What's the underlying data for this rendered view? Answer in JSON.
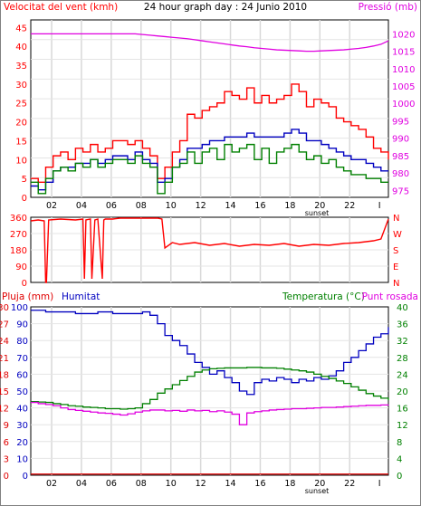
{
  "chart_data": [
    {
      "type": "line",
      "title": "24 hour graph day : 24 Junio 2010",
      "left_axis_label": "Velocitat del vent (kmh)",
      "right_axis_label": "Pressió (mb)",
      "x_ticks": [
        "02",
        "04",
        "06",
        "08",
        "10",
        "12",
        "14",
        "16",
        "18",
        "20",
        "22",
        "I"
      ],
      "x_annotation": "sunset",
      "y_left_ticks": [
        "0",
        "5",
        "10",
        "15",
        "20",
        "25",
        "30",
        "35",
        "40",
        "45"
      ],
      "y_left_range": [
        0,
        47
      ],
      "y_right_ticks": [
        "975",
        "980",
        "985",
        "990",
        "995",
        "1000",
        "1005",
        "1010",
        "1015",
        "1020"
      ],
      "y_right_range": [
        973,
        1024
      ],
      "colors": {
        "gust": "#ff0000",
        "avg": "#0000c0",
        "wind": "#008000",
        "pressure": "#e000e0",
        "axis_left": "#ff0000",
        "axis_right": "#e000e0"
      },
      "x_hours": [
        0,
        0.5,
        1,
        1.5,
        2,
        2.5,
        3,
        3.5,
        4,
        4.5,
        5,
        5.5,
        6,
        6.5,
        7,
        7.5,
        8,
        8.5,
        9,
        9.5,
        10,
        10.5,
        11,
        11.5,
        12,
        12.5,
        13,
        13.5,
        14,
        14.5,
        15,
        15.5,
        16,
        16.5,
        17,
        17.5,
        18,
        18.5,
        19,
        19.5,
        20,
        20.5,
        21,
        21.5,
        22,
        22.5,
        23,
        23.5,
        24
      ],
      "series": [
        {
          "key": "gust",
          "values": [
            5,
            4,
            8,
            11,
            12,
            10,
            13,
            12,
            14,
            12,
            13,
            15,
            15,
            14,
            15,
            13,
            11,
            5,
            8,
            12,
            15,
            22,
            21,
            23,
            24,
            25,
            28,
            27,
            26,
            29,
            25,
            27,
            25,
            26,
            27,
            30,
            28,
            24,
            26,
            25,
            24,
            21,
            20,
            19,
            18,
            16,
            13,
            12,
            10
          ]
        },
        {
          "key": "avg",
          "values": [
            3,
            2,
            4,
            7,
            8,
            8,
            9,
            9,
            10,
            9,
            10,
            11,
            11,
            10,
            12,
            10,
            9,
            4,
            5,
            8,
            10,
            13,
            13,
            14,
            15,
            15,
            16,
            16,
            16,
            17,
            16,
            16,
            16,
            16,
            17,
            18,
            17,
            15,
            15,
            14,
            13,
            12,
            11,
            10,
            10,
            9,
            8,
            7,
            7
          ]
        },
        {
          "key": "wind",
          "values": [
            4,
            1,
            5,
            7,
            8,
            7,
            9,
            8,
            10,
            8,
            9,
            10,
            10,
            9,
            11,
            9,
            8,
            1,
            4,
            8,
            9,
            12,
            9,
            12,
            13,
            10,
            14,
            12,
            13,
            14,
            10,
            13,
            9,
            12,
            13,
            14,
            12,
            10,
            11,
            9,
            10,
            8,
            7,
            6,
            6,
            5,
            5,
            4,
            4
          ]
        },
        {
          "key": "pressure",
          "values": [
            1020,
            1020,
            1020,
            1020,
            1020,
            1020,
            1020,
            1020,
            1020,
            1020,
            1020,
            1020,
            1020,
            1020,
            1020,
            1019.8,
            1019.6,
            1019.4,
            1019.2,
            1019,
            1018.8,
            1018.6,
            1018.3,
            1018,
            1017.7,
            1017.4,
            1017.1,
            1016.8,
            1016.5,
            1016.3,
            1016,
            1015.8,
            1015.6,
            1015.4,
            1015.3,
            1015.2,
            1015.1,
            1015,
            1015,
            1015.1,
            1015.2,
            1015.3,
            1015.4,
            1015.6,
            1015.8,
            1016.1,
            1016.5,
            1017,
            1018
          ]
        }
      ]
    },
    {
      "type": "line",
      "title": "",
      "y_left_ticks": [
        "0",
        "90",
        "180",
        "270",
        "360"
      ],
      "y_left_range": [
        0,
        360
      ],
      "direction_labels": [
        "N",
        "W",
        "S",
        "E",
        "N"
      ],
      "colors": {
        "direction": "#ff0000",
        "axis_left": "#ff0000",
        "axis_right": "#ff0000"
      },
      "x_hours": [
        0,
        0.5,
        0.9,
        1,
        1.05,
        1.2,
        2,
        3,
        3.5,
        3.6,
        3.7,
        4,
        4.1,
        4.3,
        4.5,
        4.8,
        4.9,
        5,
        5.5,
        6,
        7,
        8,
        8.5,
        8.8,
        9,
        9.5,
        10,
        11,
        12,
        13,
        14,
        15,
        16,
        17,
        18,
        19,
        20,
        21,
        22,
        22.5,
        23,
        23.5,
        24
      ],
      "series": [
        {
          "key": "direction",
          "values": [
            340,
            345,
            340,
            0,
            0,
            345,
            350,
            345,
            350,
            20,
            345,
            350,
            20,
            345,
            350,
            20,
            345,
            350,
            350,
            355,
            355,
            355,
            355,
            350,
            190,
            220,
            210,
            220,
            205,
            215,
            200,
            210,
            205,
            215,
            200,
            210,
            205,
            215,
            220,
            225,
            230,
            240,
            350
          ]
        }
      ]
    },
    {
      "type": "line",
      "left_axis_label_1": "Pluja (mm)",
      "left_axis_label_2": "Humitat",
      "right_axis_label_1": "Temperatura (°C)",
      "right_axis_label_2": "Punt rosada",
      "x_ticks": [
        "02",
        "04",
        "06",
        "08",
        "10",
        "12",
        "14",
        "16",
        "18",
        "20",
        "22",
        "I"
      ],
      "x_annotation": "sunset",
      "y_rain_ticks": [
        "0",
        "3",
        "6",
        "9",
        "12",
        "15",
        "18",
        "21",
        "24",
        "27",
        "30"
      ],
      "y_rain_range": [
        0,
        30
      ],
      "y_humidity_ticks": [
        "0",
        "10",
        "20",
        "30",
        "40",
        "50",
        "60",
        "70",
        "80",
        "90",
        "100"
      ],
      "y_humidity_range": [
        0,
        100
      ],
      "y_temp_ticks": [
        "0",
        "4",
        "8",
        "12",
        "16",
        "20",
        "24",
        "28",
        "32",
        "36",
        "40"
      ],
      "y_temp_range": [
        0,
        40
      ],
      "colors": {
        "rain": "#e00000",
        "humidity": "#0000c0",
        "temperature": "#008000",
        "dewpoint": "#e000e0",
        "axis_left_1": "#e00000",
        "axis_left_2": "#0000c0",
        "axis_right": "#008000"
      },
      "x_hours": [
        0,
        0.5,
        1,
        1.5,
        2,
        2.5,
        3,
        3.5,
        4,
        4.5,
        5,
        5.5,
        6,
        6.5,
        7,
        7.5,
        8,
        8.5,
        9,
        9.5,
        10,
        10.5,
        11,
        11.5,
        12,
        12.5,
        13,
        13.5,
        14,
        14.5,
        15,
        15.5,
        16,
        16.5,
        17,
        17.5,
        18,
        18.5,
        19,
        19.5,
        20,
        20.5,
        21,
        21.5,
        22,
        22.5,
        23,
        23.5,
        24
      ],
      "series": [
        {
          "key": "humidity",
          "values": [
            98,
            98,
            97,
            97,
            97,
            97,
            96,
            96,
            96,
            97,
            97,
            96,
            96,
            96,
            96,
            97,
            95,
            90,
            83,
            80,
            77,
            72,
            67,
            64,
            60,
            62,
            58,
            55,
            50,
            48,
            55,
            57,
            56,
            58,
            57,
            55,
            57,
            56,
            58,
            57,
            59,
            62,
            67,
            70,
            74,
            78,
            82,
            84,
            88
          ]
        },
        {
          "key": "temperature",
          "values": [
            17.5,
            17.4,
            17.3,
            17,
            16.8,
            16.5,
            16.4,
            16.2,
            16.1,
            16,
            15.8,
            15.8,
            15.7,
            15.8,
            16,
            17,
            18,
            19.5,
            20.5,
            21.5,
            22.5,
            23.5,
            24.5,
            25,
            25.3,
            25.4,
            25.5,
            25.5,
            25.5,
            25.6,
            25.6,
            25.5,
            25.5,
            25.4,
            25.2,
            25,
            24.8,
            24.5,
            24,
            23.5,
            23,
            22.4,
            21.8,
            21,
            20.2,
            19.4,
            18.8,
            18.3,
            17.8
          ]
        },
        {
          "key": "dewpoint",
          "values": [
            17.3,
            17,
            16.8,
            16.5,
            16,
            15.6,
            15.4,
            15.2,
            15,
            14.8,
            14.7,
            14.5,
            14.3,
            14.6,
            15,
            15.3,
            15.5,
            15.5,
            15.3,
            15.4,
            15.2,
            15.5,
            15.3,
            15.4,
            15.1,
            15.3,
            15,
            14.5,
            12,
            14.8,
            15.1,
            15.3,
            15.5,
            15.6,
            15.7,
            15.8,
            15.8,
            15.9,
            16,
            16.1,
            16.1,
            16.2,
            16.3,
            16.4,
            16.5,
            16.6,
            16.6,
            16.7,
            16.8
          ]
        },
        {
          "key": "rain",
          "values": [
            0.2,
            0.2,
            0.2,
            0.2,
            0.2,
            0.2,
            0.2,
            0.2,
            0.2,
            0.2,
            0.2,
            0.2,
            0.2,
            0.2,
            0.2,
            0.2,
            0.2,
            0.2,
            0.2,
            0.2,
            0.2,
            0.2,
            0.2,
            0.2,
            0.2,
            0.2,
            0.2,
            0.2,
            0.2,
            0.2,
            0.2,
            0.2,
            0.2,
            0.2,
            0.2,
            0.2,
            0.2,
            0.2,
            0.2,
            0.2,
            0.2,
            0.2,
            0.2,
            0.2,
            0.2,
            0.2,
            0.2,
            0.2,
            0.2
          ]
        }
      ]
    }
  ]
}
